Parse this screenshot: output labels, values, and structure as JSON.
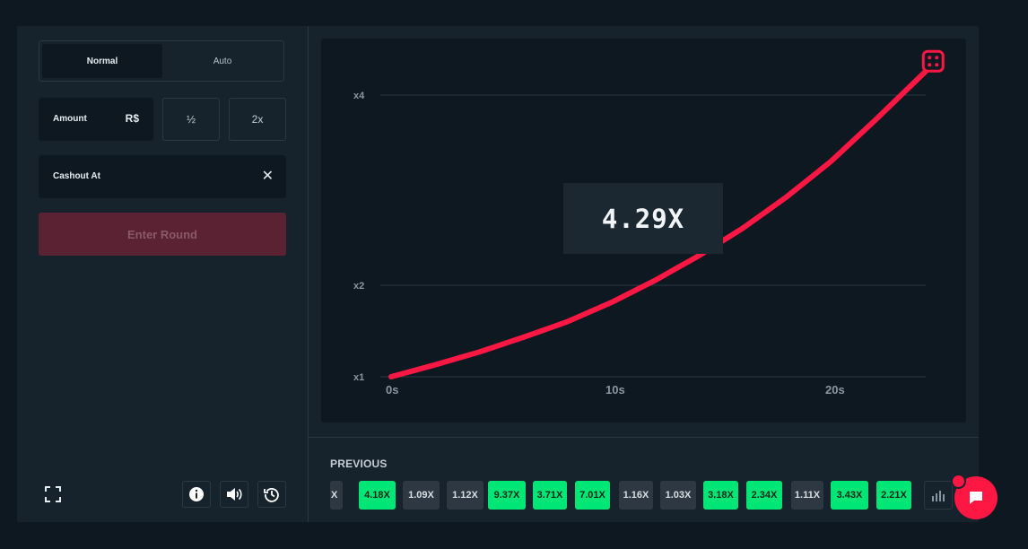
{
  "controls": {
    "mode_tabs": [
      "Normal",
      "Auto"
    ],
    "amount_label": "Amount",
    "currency": "R$",
    "half_label": "½",
    "double_label": "2x",
    "cashout_label": "Cashout At",
    "clear_glyph": "✕",
    "enter_label": "Enter Round"
  },
  "footer_icons": [
    "fullscreen-icon",
    "info-icon",
    "volume-icon",
    "history-icon"
  ],
  "game": {
    "multiplier": "4.29X",
    "marker_icon": "dice-icon",
    "curve_color": "#ff1744"
  },
  "chart_data": {
    "type": "line",
    "x_ticks": [
      "0s",
      "10s",
      "20s"
    ],
    "y_ticks": [
      "x1",
      "x2",
      "x4"
    ],
    "x_range": [
      0,
      24.5
    ],
    "y_range": [
      1,
      4.29
    ],
    "series": [
      {
        "x": [
          0,
          2,
          4,
          6,
          8,
          10,
          12,
          14,
          16,
          18,
          20,
          22,
          24.5
        ],
        "values": [
          1.0,
          1.13,
          1.27,
          1.43,
          1.6,
          1.81,
          2.05,
          2.31,
          2.6,
          2.93,
          3.3,
          3.73,
          4.29
        ]
      }
    ]
  },
  "previous": {
    "title": "PREVIOUS",
    "cut_chip": "X",
    "chips": [
      {
        "label": "4.18X",
        "status": "green"
      },
      {
        "label": "1.09X",
        "status": "gray"
      },
      {
        "label": "1.12X",
        "status": "gray"
      },
      {
        "label": "9.37X",
        "status": "green"
      },
      {
        "label": "3.71X",
        "status": "green"
      },
      {
        "label": "7.01X",
        "status": "green"
      },
      {
        "label": "1.16X",
        "status": "gray"
      },
      {
        "label": "1.03X",
        "status": "gray"
      },
      {
        "label": "3.18X",
        "status": "green"
      },
      {
        "label": "2.34X",
        "status": "green"
      },
      {
        "label": "1.11X",
        "status": "gray"
      },
      {
        "label": "3.43X",
        "status": "green"
      },
      {
        "label": "2.21X",
        "status": "green"
      }
    ],
    "stats_icon": "bar-chart-icon"
  },
  "chat": {
    "icon": "chat-icon",
    "color": "#ff1744"
  }
}
